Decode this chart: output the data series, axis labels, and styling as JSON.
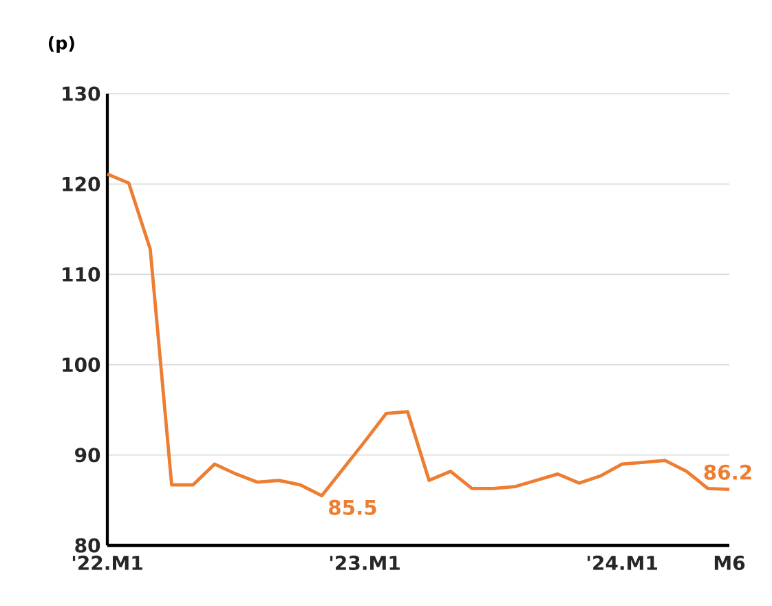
{
  "chart_data": {
    "type": "line",
    "ylabel": "(p)",
    "categories": [
      "'22.M1",
      null,
      null,
      null,
      null,
      null,
      null,
      null,
      null,
      null,
      null,
      null,
      "'23.M1",
      null,
      null,
      null,
      null,
      null,
      null,
      null,
      null,
      null,
      null,
      null,
      "'24.M1",
      null,
      null,
      null,
      null,
      "M6"
    ],
    "series": [
      {
        "color": "#ed7d31",
        "values": [
          121.1,
          120.1,
          112.8,
          86.7,
          86.7,
          89.0,
          87.9,
          87.0,
          87.2,
          86.7,
          85.5,
          88.5,
          91.5,
          94.6,
          94.8,
          87.2,
          88.2,
          86.3,
          86.3,
          86.5,
          87.2,
          87.9,
          86.9,
          87.7,
          89.0,
          89.2,
          89.4,
          88.2,
          86.3,
          86.2
        ],
        "value_labels": [
          null,
          null,
          null,
          null,
          null,
          null,
          null,
          null,
          null,
          null,
          "85.5",
          null,
          null,
          null,
          null,
          null,
          null,
          null,
          null,
          null,
          null,
          null,
          null,
          null,
          null,
          null,
          null,
          null,
          null,
          "86.2"
        ]
      }
    ],
    "ylim": [
      80,
      130
    ],
    "yticks": [
      80,
      90,
      100,
      110,
      120,
      130
    ],
    "grid": "y",
    "marker": "none",
    "line_style": "solid"
  }
}
